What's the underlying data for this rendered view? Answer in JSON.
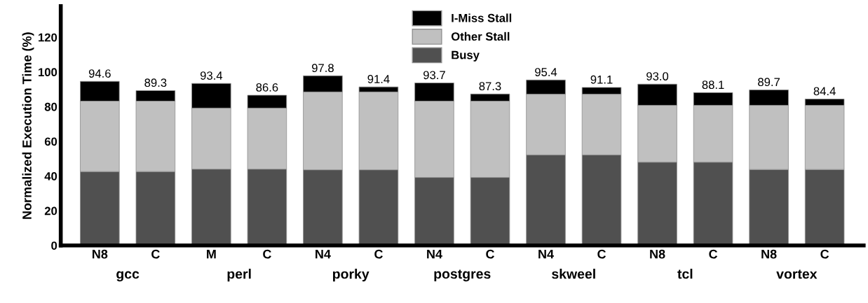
{
  "chart_data": {
    "type": "bar",
    "stacked": true,
    "ylabel": "Normalized Execution Time (%)",
    "categories": [
      "N8",
      "C",
      "M",
      "C",
      "N4",
      "C",
      "N4",
      "C",
      "N4",
      "C",
      "N8",
      "C",
      "N8",
      "C"
    ],
    "series": [
      {
        "name": "Busy",
        "color": "#505050",
        "values": [
          42.6,
          42.6,
          44.0,
          44.0,
          43.6,
          43.6,
          39.2,
          39.2,
          52.2,
          52.2,
          48.0,
          48.0,
          43.8,
          43.8
        ]
      },
      {
        "name": "Other Stall",
        "color": "#c0c0c0",
        "values": [
          40.6,
          40.6,
          35.2,
          35.2,
          44.9,
          44.9,
          44.0,
          44.0,
          35.0,
          35.0,
          32.8,
          32.8,
          37.0,
          37.0
        ]
      },
      {
        "name": "I-Miss Stall",
        "color": "#000000",
        "values": [
          11.4,
          6.1,
          14.2,
          7.4,
          9.3,
          2.9,
          10.5,
          4.1,
          8.2,
          3.9,
          12.2,
          7.3,
          8.9,
          3.6
        ]
      }
    ],
    "totals": [
      "94.6",
      "89.3",
      "93.4",
      "86.6",
      "97.8",
      "91.4",
      "93.7",
      "87.3",
      "95.4",
      "91.1",
      "93.0",
      "88.1",
      "89.7",
      "84.4"
    ],
    "annotations": [
      "gcc",
      "perl",
      "porky",
      "postgres",
      "skweel",
      "tcl",
      "vortex"
    ],
    "ylim": [
      0,
      138
    ],
    "yticks": [
      0,
      20,
      40,
      60,
      80,
      100,
      120
    ],
    "grid": false,
    "legend": "top"
  }
}
